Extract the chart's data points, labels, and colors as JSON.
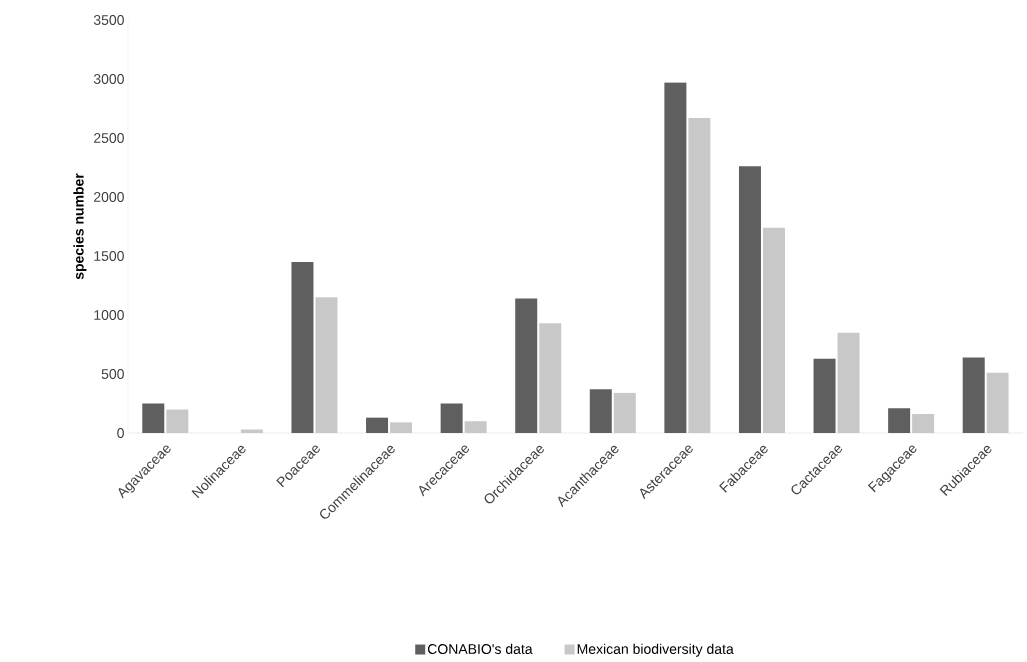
{
  "chart_data": {
    "type": "bar",
    "ylabel": "species number",
    "categories": [
      "Agavaceae",
      "Nolinaceae",
      "Poaceae",
      "Commelinaceae",
      "Arecaceae",
      "Orchidaceae",
      "Acanthaceae",
      "Asteraceae",
      "Fabaceae",
      "Cactaceae",
      "Fagaceae",
      "Rubiaceae"
    ],
    "series": [
      {
        "name": "CONABIO's data",
        "color": "#5f5f5f",
        "values": [
          250,
          0,
          1450,
          130,
          250,
          1140,
          370,
          2970,
          2260,
          630,
          210,
          640
        ]
      },
      {
        "name": "Mexican biodiversity data",
        "color": "#c8c8c8",
        "values": [
          200,
          30,
          1150,
          90,
          100,
          930,
          340,
          2670,
          1740,
          850,
          160,
          510
        ]
      }
    ],
    "ylim": [
      0,
      3500
    ],
    "yticks": [
      0,
      500,
      1000,
      1500,
      2000,
      2500,
      3000,
      3500
    ],
    "grid": false,
    "legend": "bottom"
  }
}
